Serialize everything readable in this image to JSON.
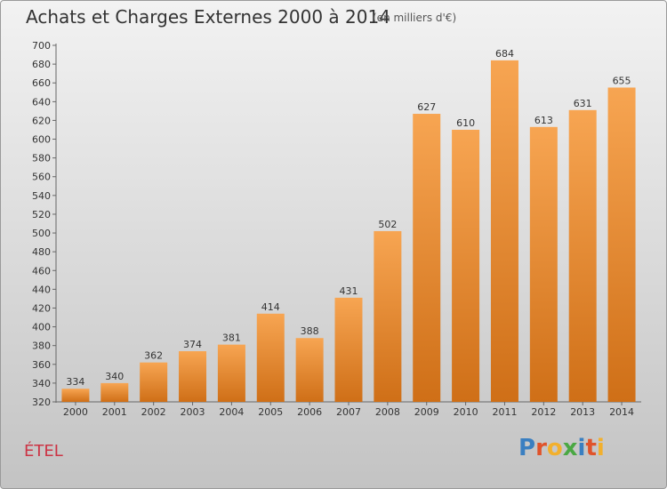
{
  "header": {
    "title": "Achats et Charges Externes 2000 à 2014",
    "unit": "(en milliers d'€)"
  },
  "footer": {
    "commune": "ÉTEL",
    "logo": [
      "P",
      "r",
      "o",
      "x",
      "i",
      "t",
      "i"
    ],
    "logo_colors": [
      "#3a7fc1",
      "#e0532a",
      "#f2b02d",
      "#4aa843",
      "#3a7fc1",
      "#e0532a",
      "#f2b02d"
    ]
  },
  "chart_data": {
    "type": "bar",
    "title": "Achats et Charges Externes 2000 à 2014",
    "subtitle": "(en milliers d'€)",
    "xlabel": "",
    "ylabel": "",
    "categories": [
      "2000",
      "2001",
      "2002",
      "2003",
      "2004",
      "2005",
      "2006",
      "2007",
      "2008",
      "2009",
      "2010",
      "2011",
      "2012",
      "2013",
      "2014"
    ],
    "values": [
      334,
      340,
      362,
      374,
      381,
      414,
      388,
      431,
      502,
      627,
      610,
      684,
      613,
      631,
      655
    ],
    "ylim": [
      320,
      700
    ],
    "yticks": [
      320,
      340,
      360,
      380,
      400,
      420,
      440,
      460,
      480,
      500,
      520,
      540,
      560,
      580,
      600,
      620,
      640,
      660,
      680,
      700
    ],
    "grid": false,
    "bar_color_top": "#f7a552",
    "bar_color_bottom": "#cf6f17"
  }
}
